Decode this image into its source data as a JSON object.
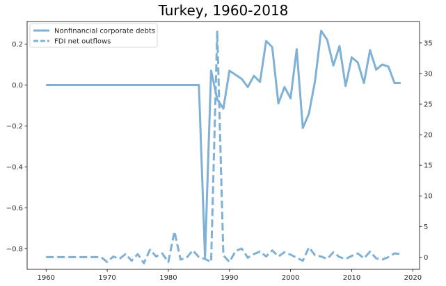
{
  "chart_data": {
    "type": "line",
    "title": "Turkey, 1960-2018",
    "xlabel": "",
    "ylabel_left": "",
    "ylabel_right": "",
    "xlim": [
      1956.9,
      2021.1
    ],
    "ylim_left": [
      -0.9,
      0.31
    ],
    "ylim_right": [
      -2.0,
      38.5
    ],
    "x_ticks": [
      1960,
      1970,
      1980,
      1990,
      2000,
      2010,
      2020
    ],
    "y_left_ticks": [
      -0.8,
      -0.6,
      -0.4,
      -0.2,
      0.0,
      0.2
    ],
    "y_right_ticks": [
      0,
      5,
      10,
      15,
      20,
      25,
      30,
      35
    ],
    "x_tick_labels": [
      "1960",
      "1970",
      "1980",
      "1990",
      "2000",
      "2010",
      "2020"
    ],
    "y_left_tick_labels": [
      "−0.8",
      "−0.6",
      "−0.4",
      "−0.2",
      "0.0",
      "0.2"
    ],
    "y_right_tick_labels": [
      "0",
      "5",
      "10",
      "15",
      "20",
      "25",
      "30",
      "35"
    ],
    "grid": false,
    "legend_position": "top-left",
    "series": [
      {
        "name": "Nonfinancial corporate debts",
        "axis": "left",
        "style": "solid",
        "color": "#7fb0d5",
        "x": [
          1960,
          1961,
          1962,
          1963,
          1964,
          1965,
          1966,
          1967,
          1968,
          1969,
          1970,
          1971,
          1972,
          1973,
          1974,
          1975,
          1976,
          1977,
          1978,
          1979,
          1980,
          1981,
          1982,
          1983,
          1984,
          1985,
          1986,
          1987,
          1988,
          1989,
          1990,
          1991,
          1992,
          1993,
          1994,
          1995,
          1996,
          1997,
          1998,
          1999,
          2000,
          2001,
          2002,
          2003,
          2004,
          2005,
          2006,
          2007,
          2008,
          2009,
          2010,
          2011,
          2012,
          2013,
          2014,
          2015,
          2016,
          2017,
          2018
        ],
        "y": [
          0,
          0,
          0,
          0,
          0,
          0,
          0,
          0,
          0,
          0,
          0,
          0,
          0,
          0,
          0,
          0,
          0,
          0,
          0,
          0,
          0,
          0,
          0,
          0,
          0,
          0,
          -0.84,
          0.07,
          -0.07,
          -0.115,
          0.07,
          0.05,
          0.03,
          -0.01,
          0.045,
          0.015,
          0.215,
          0.185,
          -0.09,
          -0.01,
          -0.065,
          0.175,
          -0.21,
          -0.14,
          0.02,
          0.265,
          0.22,
          0.095,
          0.19,
          -0.005,
          0.135,
          0.11,
          0.01,
          0.17,
          0.075,
          0.1,
          0.09,
          0.01,
          0.01
        ]
      },
      {
        "name": "FDI net outflows",
        "axis": "right",
        "style": "dashed",
        "color": "#7fb0d5",
        "x": [
          1960,
          1961,
          1962,
          1963,
          1964,
          1965,
          1966,
          1967,
          1968,
          1969,
          1970,
          1971,
          1972,
          1973,
          1974,
          1975,
          1976,
          1977,
          1978,
          1979,
          1980,
          1981,
          1982,
          1983,
          1984,
          1985,
          1986,
          1987,
          1988,
          1989,
          1990,
          1991,
          1992,
          1993,
          1994,
          1995,
          1996,
          1997,
          1998,
          1999,
          2000,
          2001,
          2002,
          2003,
          2004,
          2005,
          2006,
          2007,
          2008,
          2009,
          2010,
          2011,
          2012,
          2013,
          2014,
          2015,
          2016,
          2017,
          2018
        ],
        "y": [
          0,
          0,
          0,
          0,
          0,
          0,
          0,
          0,
          0,
          0,
          -0.8,
          0.1,
          -0.3,
          0.5,
          -0.6,
          0.5,
          -1,
          1.2,
          0.1,
          0.6,
          -0.8,
          4.2,
          -0.4,
          -0.1,
          1.1,
          0,
          -0.3,
          -0.8,
          37.0,
          0.3,
          -0.8,
          1.0,
          1.4,
          -0.1,
          0.5,
          0.9,
          0.1,
          1.1,
          0.1,
          0.8,
          0.4,
          -0.1,
          -0.6,
          1.6,
          0.3,
          0.1,
          -0.3,
          0.8,
          0,
          -0.3,
          0.2,
          0.6,
          -0.2,
          0.9,
          -0.2,
          -0.4,
          0,
          0.6,
          0.5
        ]
      }
    ]
  }
}
